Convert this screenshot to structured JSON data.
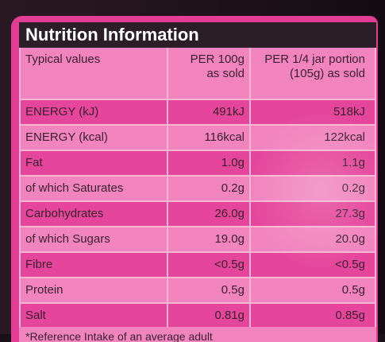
{
  "label": {
    "title": "Nutrition Information",
    "columns": {
      "c1": "Typical values",
      "c2_line1": "PER 100g",
      "c2_line2": "as sold",
      "c3_line1": "PER 1/4 jar portion",
      "c3_line2": "(105g) as sold"
    },
    "rows": [
      {
        "name": "ENERGY (kJ)",
        "per100": "491kJ",
        "portion": "518kJ"
      },
      {
        "name": "ENERGY (kcal)",
        "per100": "116kcal",
        "portion": "122kcal"
      },
      {
        "name": "Fat",
        "per100": "1.0g",
        "portion": "1.1g"
      },
      {
        "name": "of which Saturates",
        "per100": "0.2g",
        "portion": "0.2g"
      },
      {
        "name": "Carbohydrates",
        "per100": "26.0g",
        "portion": "27.3g"
      },
      {
        "name": "of which Sugars",
        "per100": "19.0g",
        "portion": "20.0g"
      },
      {
        "name": "Fibre",
        "per100": "<0.5g",
        "portion": "<0.5g"
      },
      {
        "name": "Protein",
        "per100": "0.5g",
        "portion": "0.5g"
      },
      {
        "name": "Salt",
        "per100": "0.81g",
        "portion": "0.85g"
      }
    ],
    "footnote": "*Reference Intake of an average adult"
  },
  "colors": {
    "label_pink": "#e33d95",
    "row_light": "#f184bf",
    "row_dark": "#e5469b",
    "header_bg": "#2b1e26"
  }
}
